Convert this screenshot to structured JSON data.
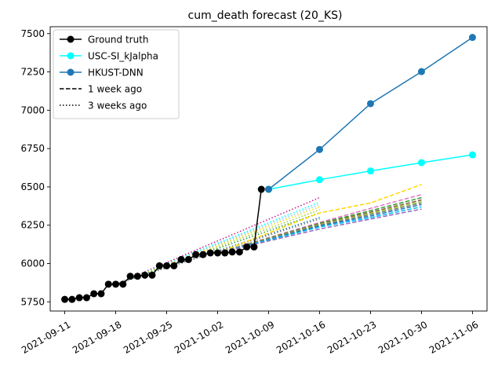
{
  "chart_data": {
    "type": "line",
    "title": "cum_death forecast (20_KS)",
    "xlabel": "",
    "ylabel": "",
    "x_ticks": [
      "2021-09-11",
      "2021-09-18",
      "2021-09-25",
      "2021-10-02",
      "2021-10-09",
      "2021-10-16",
      "2021-10-23",
      "2021-10-30",
      "2021-11-06"
    ],
    "y_ticks": [
      5750,
      6000,
      6250,
      6500,
      6750,
      7000,
      7250,
      7500
    ],
    "xlim": [
      "2021-09-09",
      "2021-11-08"
    ],
    "ylim": [
      5690,
      7545
    ],
    "grid": false,
    "legend": {
      "position": "top-left",
      "entries": [
        {
          "label": "Ground truth",
          "color": "#000000",
          "style": "solid",
          "marker": true
        },
        {
          "label": "USC-SI_kJalpha",
          "color": "#00ffff",
          "style": "solid",
          "marker": true
        },
        {
          "label": "HKUST-DNN",
          "color": "#1f77b4",
          "style": "solid",
          "marker": true
        },
        {
          "label": "1 week ago",
          "color": "#000000",
          "style": "dashed",
          "marker": false
        },
        {
          "label": "3 weeks ago",
          "color": "#000000",
          "style": "dotted",
          "marker": false
        }
      ]
    },
    "series": [
      {
        "name": "Ground truth",
        "color": "#000000",
        "style": "solid",
        "marker": true,
        "x": [
          "2021-09-11",
          "2021-09-12",
          "2021-09-13",
          "2021-09-14",
          "2021-09-15",
          "2021-09-16",
          "2021-09-17",
          "2021-09-18",
          "2021-09-19",
          "2021-09-20",
          "2021-09-21",
          "2021-09-22",
          "2021-09-23",
          "2021-09-24",
          "2021-09-25",
          "2021-09-26",
          "2021-09-27",
          "2021-09-28",
          "2021-09-29",
          "2021-09-30",
          "2021-10-01",
          "2021-10-02",
          "2021-10-03",
          "2021-10-04",
          "2021-10-05",
          "2021-10-06",
          "2021-10-07",
          "2021-10-08"
        ],
        "y": [
          5766,
          5766,
          5777,
          5777,
          5803,
          5803,
          5865,
          5865,
          5865,
          5917,
          5917,
          5924,
          5924,
          5985,
          5985,
          5985,
          6026,
          6026,
          6058,
          6058,
          6069,
          6069,
          6069,
          6075,
          6075,
          6108,
          6108,
          6484
        ]
      },
      {
        "name": "USC-SI_kJalpha",
        "color": "#00ffff",
        "style": "solid",
        "marker": true,
        "x": [
          "2021-10-09",
          "2021-10-16",
          "2021-10-23",
          "2021-10-30",
          "2021-11-06"
        ],
        "y": [
          6484,
          6547,
          6604,
          6658,
          6709
        ]
      },
      {
        "name": "HKUST-DNN",
        "color": "#1f77b4",
        "style": "solid",
        "marker": true,
        "x": [
          "2021-10-09",
          "2021-10-16",
          "2021-10-23",
          "2021-10-30",
          "2021-11-06"
        ],
        "y": [
          6484,
          6744,
          7043,
          7252,
          7475
        ]
      }
    ],
    "past_forecasts_1_week_ago": [
      {
        "color": "#ffd700",
        "x": [
          "2021-10-02",
          "2021-10-16",
          "2021-10-23",
          "2021-10-30"
        ],
        "y": [
          6069,
          6330,
          6395,
          6515
        ]
      },
      {
        "color": "#e377c2",
        "x": [
          "2021-10-02",
          "2021-10-16",
          "2021-10-23",
          "2021-10-30"
        ],
        "y": [
          6069,
          6268,
          6360,
          6450
        ]
      },
      {
        "color": "#2ca02c",
        "x": [
          "2021-10-02",
          "2021-10-16",
          "2021-10-23",
          "2021-10-30"
        ],
        "y": [
          6069,
          6262,
          6345,
          6430
        ]
      },
      {
        "color": "#8c564b",
        "x": [
          "2021-10-02",
          "2021-10-16",
          "2021-10-23",
          "2021-10-30"
        ],
        "y": [
          6069,
          6258,
          6335,
          6415
        ]
      },
      {
        "color": "#9acd32",
        "x": [
          "2021-10-02",
          "2021-10-16",
          "2021-10-23",
          "2021-10-30"
        ],
        "y": [
          6069,
          6254,
          6328,
          6405
        ]
      },
      {
        "color": "#7f7f7f",
        "x": [
          "2021-10-02",
          "2021-10-16",
          "2021-10-23",
          "2021-10-30"
        ],
        "y": [
          6069,
          6250,
          6320,
          6395
        ]
      },
      {
        "color": "#1f77b4",
        "x": [
          "2021-10-02",
          "2021-10-16",
          "2021-10-23",
          "2021-10-30"
        ],
        "y": [
          6069,
          6245,
          6310,
          6385
        ]
      },
      {
        "color": "#00bfff",
        "x": [
          "2021-10-02",
          "2021-10-16",
          "2021-10-23",
          "2021-10-30"
        ],
        "y": [
          6069,
          6238,
          6300,
          6370
        ]
      },
      {
        "color": "#9467bd",
        "x": [
          "2021-10-02",
          "2021-10-16",
          "2021-10-23",
          "2021-10-30"
        ],
        "y": [
          6069,
          6225,
          6290,
          6355
        ]
      }
    ],
    "past_forecasts_3_weeks_ago": [
      {
        "color": "#c71585",
        "x": [
          "2021-09-18",
          "2021-10-16"
        ],
        "y": [
          5865,
          6430
        ]
      },
      {
        "color": "#00ffff",
        "x": [
          "2021-09-18",
          "2021-10-16"
        ],
        "y": [
          5865,
          6400
        ]
      },
      {
        "color": "#87cefa",
        "x": [
          "2021-09-18",
          "2021-10-16"
        ],
        "y": [
          5865,
          6385
        ]
      },
      {
        "color": "#ffd700",
        "x": [
          "2021-09-18",
          "2021-10-16"
        ],
        "y": [
          5865,
          6370
        ]
      },
      {
        "color": "#9acd32",
        "x": [
          "2021-09-18",
          "2021-10-16"
        ],
        "y": [
          5865,
          6350
        ]
      },
      {
        "color": "#2ca02c",
        "x": [
          "2021-09-18",
          "2021-10-16"
        ],
        "y": [
          5865,
          6330
        ]
      },
      {
        "color": "#1f77b4",
        "x": [
          "2021-09-18",
          "2021-10-16"
        ],
        "y": [
          5865,
          6300
        ]
      },
      {
        "color": "#7f7f7f",
        "x": [
          "2021-09-18",
          "2021-10-16"
        ],
        "y": [
          5865,
          6290
        ]
      }
    ]
  }
}
